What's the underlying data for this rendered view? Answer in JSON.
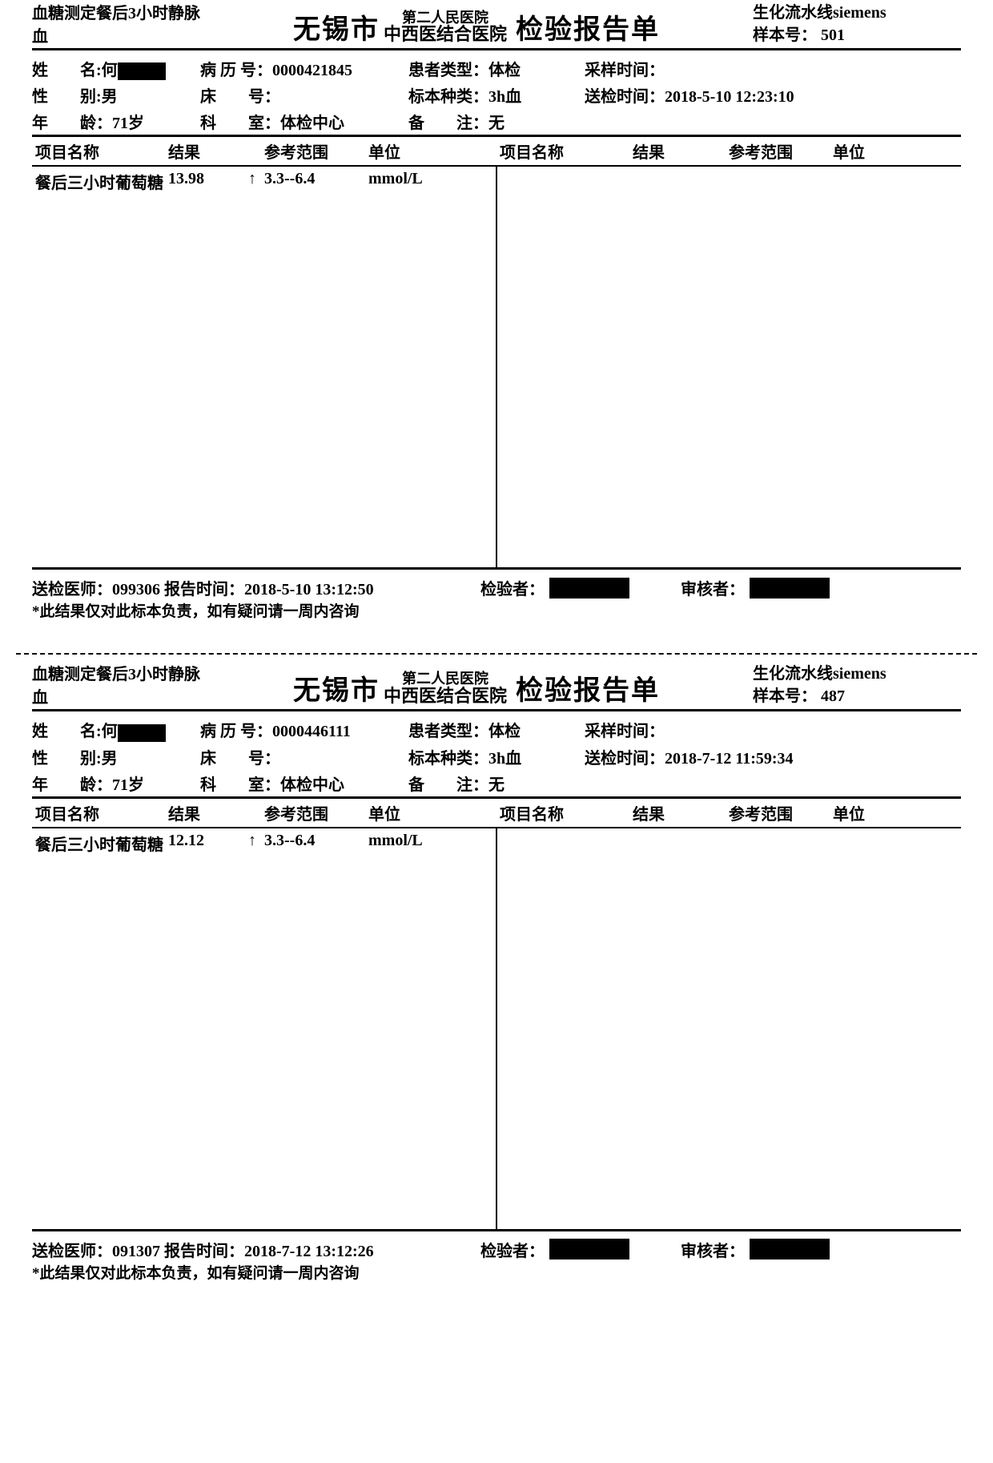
{
  "reports": [
    {
      "subtitle": "血糖测定餐后3小时静脉血",
      "city": "无锡市",
      "hospital_upper": "第二人民医院",
      "hospital_lower": "中西医结合医院",
      "main_title": "检验报告单",
      "machine": "生化流水线siemens",
      "sample_label": "样本号：",
      "sample_no": "501",
      "name_label": "姓　　名:",
      "name_val": "何",
      "record_label": "病 历 号：",
      "record_val": "0000421845",
      "ptype_label": "患者类型：",
      "ptype_val": "体检",
      "collect_label": "采样时间：",
      "collect_val": "",
      "sex_label": "性　　别:",
      "sex_val": "男",
      "bed_label": "床　　号：",
      "bed_val": "",
      "spec_label": "标本种类：",
      "spec_val": "3h血",
      "send_label": "送检时间：",
      "send_val": "2018-5-10 12:23:10",
      "age_label": "年　　龄：",
      "age_val": "71岁",
      "dept_label": "科　　室：",
      "dept_val": "体检中心",
      "remark_label": "备　　注：",
      "remark_val": "无",
      "hdr_name": "项目名称",
      "hdr_result": "结果",
      "hdr_range": "参考范围",
      "hdr_unit": "单位",
      "item_name": "餐后三小时葡萄糖",
      "item_result": "13.98",
      "item_flag": "↑",
      "item_range": "3.3--6.4",
      "item_unit": "mmol/L",
      "doctor_label": "送检医师：",
      "doctor_val": "099306",
      "reporttime_label": "报告时间：",
      "reporttime_val": "2018-5-10 13:12:50",
      "checker_label": "检验者：",
      "reviewer_label": "审核者：",
      "disclaimer": "*此结果仅对此标本负责，如有疑问请一周内咨询"
    },
    {
      "subtitle": "血糖测定餐后3小时静脉血",
      "city": "无锡市",
      "hospital_upper": "第二人民医院",
      "hospital_lower": "中西医结合医院",
      "main_title": "检验报告单",
      "machine": "生化流水线siemens",
      "sample_label": "样本号：",
      "sample_no": "487",
      "name_label": "姓　　名:",
      "name_val": "何",
      "record_label": "病 历 号：",
      "record_val": "0000446111",
      "ptype_label": "患者类型：",
      "ptype_val": "体检",
      "collect_label": "采样时间：",
      "collect_val": "",
      "sex_label": "性　　别:",
      "sex_val": "男",
      "bed_label": "床　　号：",
      "bed_val": "",
      "spec_label": "标本种类：",
      "spec_val": "3h血",
      "send_label": "送检时间：",
      "send_val": "2018-7-12 11:59:34",
      "age_label": "年　　龄：",
      "age_val": "71岁",
      "dept_label": "科　　室：",
      "dept_val": "体检中心",
      "remark_label": "备　　注：",
      "remark_val": "无",
      "hdr_name": "项目名称",
      "hdr_result": "结果",
      "hdr_range": "参考范围",
      "hdr_unit": "单位",
      "item_name": "餐后三小时葡萄糖",
      "item_result": "12.12",
      "item_flag": "↑",
      "item_range": "3.3--6.4",
      "item_unit": "mmol/L",
      "doctor_label": "送检医师：",
      "doctor_val": "091307",
      "reporttime_label": "报告时间：",
      "reporttime_val": "2018-7-12 13:12:26",
      "checker_label": "检验者：",
      "reviewer_label": "审核者：",
      "disclaimer": "*此结果仅对此标本负责，如有疑问请一周内咨询"
    }
  ]
}
